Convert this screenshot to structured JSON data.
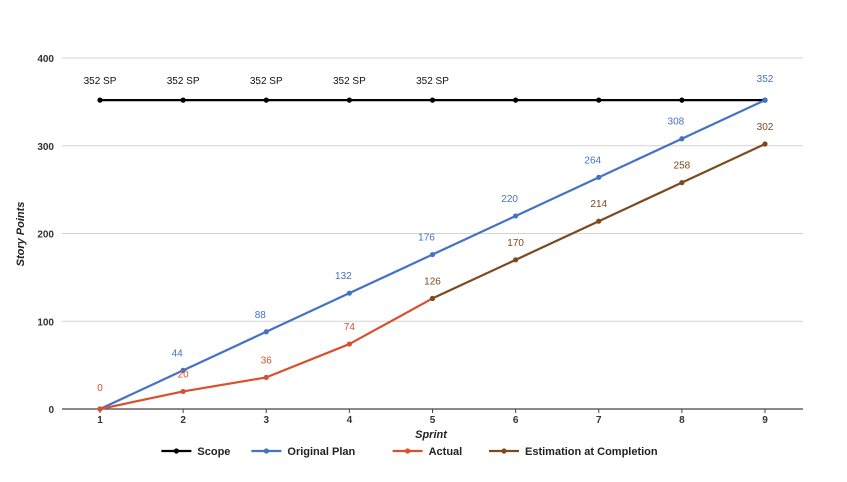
{
  "chart_data": {
    "type": "line",
    "title": "",
    "xlabel": "Sprint",
    "ylabel": "Story Points",
    "x": [
      1,
      2,
      3,
      4,
      5,
      6,
      7,
      8,
      9
    ],
    "ylim": [
      0,
      400
    ],
    "yticks": [
      "0",
      "100",
      "200",
      "300",
      "400"
    ],
    "grid": true,
    "legend_position": "bottom",
    "series": [
      {
        "name": "Scope",
        "color": "#000000",
        "x": [
          1,
          2,
          3,
          4,
          5,
          6,
          7,
          8,
          9
        ],
        "values": [
          352,
          352,
          352,
          352,
          352,
          352,
          352,
          352,
          352
        ],
        "labels": [
          "352 SP",
          "352 SP",
          "352 SP",
          "352 SP",
          "352 SP",
          "",
          "",
          "",
          ""
        ]
      },
      {
        "name": "Original Plan",
        "color": "#4472c4",
        "x": [
          1,
          2,
          3,
          4,
          5,
          6,
          7,
          8,
          9
        ],
        "values": [
          0,
          44,
          88,
          132,
          176,
          220,
          264,
          308,
          352
        ],
        "labels": [
          "",
          "44",
          "88",
          "132",
          "176",
          "220",
          "264",
          "308",
          "352"
        ]
      },
      {
        "name": "Actual",
        "color": "#d9502e",
        "x": [
          1,
          2,
          3,
          4,
          5
        ],
        "values": [
          0,
          20,
          36,
          74,
          126
        ],
        "labels": [
          "0",
          "20",
          "36",
          "74",
          ""
        ]
      },
      {
        "name": "Estimation at Completion",
        "color": "#7b4a1e",
        "x": [
          5,
          6,
          7,
          8,
          9
        ],
        "values": [
          126,
          170,
          214,
          258,
          302
        ],
        "labels": [
          "126",
          "170",
          "214",
          "258",
          "302"
        ]
      }
    ]
  }
}
